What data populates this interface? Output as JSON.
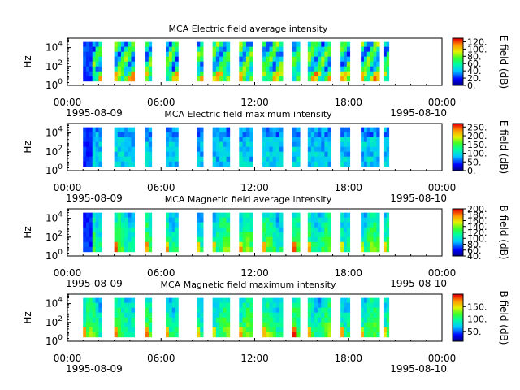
{
  "figure": {
    "date_start": "1995-08-09",
    "date_end": "1995-08-10"
  },
  "chart_data": [
    {
      "type": "heatmap",
      "title": "MCA  Electric field average intensity",
      "ylabel": "Hz",
      "x_tick_labels": [
        "00:00",
        "06:00",
        "12:00",
        "18:00",
        "00:00"
      ],
      "x_ticks_hours": [
        0,
        6,
        12,
        18,
        24
      ],
      "xlim_hours": [
        0,
        24
      ],
      "ylim_hz": [
        1,
        100000
      ],
      "yscale": "log",
      "y_tick_labels": [
        "10^0",
        "10^2",
        "10^4"
      ],
      "colorbar": {
        "label": "E field (dB)",
        "range": [
          0,
          130
        ],
        "tick_labels": [
          "0.",
          "20.",
          "40.",
          "60.",
          "80.",
          "100.",
          "120."
        ],
        "ticks": [
          0,
          20,
          40,
          60,
          80,
          100,
          120
        ]
      },
      "intensity_scale": 1.0,
      "grid": false
    },
    {
      "type": "heatmap",
      "title": "MCA  Electric field maximum intensity",
      "ylabel": "Hz",
      "x_tick_labels": [
        "00:00",
        "06:00",
        "12:00",
        "18:00",
        "00:00"
      ],
      "x_ticks_hours": [
        0,
        6,
        12,
        18,
        24
      ],
      "xlim_hours": [
        0,
        24
      ],
      "ylim_hz": [
        1,
        100000
      ],
      "yscale": "log",
      "y_tick_labels": [
        "10^0",
        "10^2",
        "10^4"
      ],
      "colorbar": {
        "label": "E field (dB)",
        "range": [
          0,
          270
        ],
        "tick_labels": [
          "0.",
          "50.",
          "100.",
          "150.",
          "200.",
          "250."
        ],
        "ticks": [
          0,
          50,
          100,
          150,
          200,
          250
        ]
      },
      "intensity_scale": 0.72,
      "grid": false
    },
    {
      "type": "heatmap",
      "title": "MCA  Magnetic field average intensity",
      "ylabel": "Hz",
      "x_tick_labels": [
        "00:00",
        "06:00",
        "12:00",
        "18:00",
        "00:00"
      ],
      "x_ticks_hours": [
        0,
        6,
        12,
        18,
        24
      ],
      "xlim_hours": [
        0,
        24
      ],
      "ylim_hz": [
        1,
        100000
      ],
      "yscale": "log",
      "y_tick_labels": [
        "10^0",
        "10^2",
        "10^4"
      ],
      "colorbar": {
        "label": "B field (dB)",
        "range": [
          40,
          200
        ],
        "tick_labels": [
          "40.",
          "60.",
          "80.",
          "100.",
          "120.",
          "140.",
          "160.",
          "180.",
          "200."
        ],
        "ticks": [
          40,
          60,
          80,
          100,
          120,
          140,
          160,
          180,
          200
        ]
      },
      "intensity_scale": 0.85,
      "grid": false
    },
    {
      "type": "heatmap",
      "title": "MCA  Magnetic field maximum intensity",
      "ylabel": "Hz",
      "x_tick_labels": [
        "00:00",
        "06:00",
        "12:00",
        "18:00",
        "00:00"
      ],
      "x_ticks_hours": [
        0,
        6,
        12,
        18,
        24
      ],
      "xlim_hours": [
        0,
        24
      ],
      "ylim_hz": [
        1,
        100000
      ],
      "yscale": "log",
      "y_tick_labels": [
        "10^0",
        "10^2",
        "10^4"
      ],
      "colorbar": {
        "label": "B field (dB)",
        "range": [
          10,
          200
        ],
        "tick_labels": [
          "50.",
          "100.",
          "150."
        ],
        "ticks": [
          50,
          100,
          150
        ]
      },
      "intensity_scale": 0.9,
      "grid": false
    }
  ],
  "data_segments_hours": [
    [
      1.0,
      2.2
    ],
    [
      3.0,
      4.3
    ],
    [
      5.0,
      5.4
    ],
    [
      6.3,
      7.1
    ],
    [
      8.3,
      8.7
    ],
    [
      9.3,
      10.4
    ],
    [
      11.0,
      11.9
    ],
    [
      12.5,
      13.8
    ],
    [
      14.4,
      14.9
    ],
    [
      15.4,
      16.9
    ],
    [
      17.5,
      18.1
    ],
    [
      18.8,
      20.0
    ],
    [
      20.3,
      20.6
    ]
  ]
}
